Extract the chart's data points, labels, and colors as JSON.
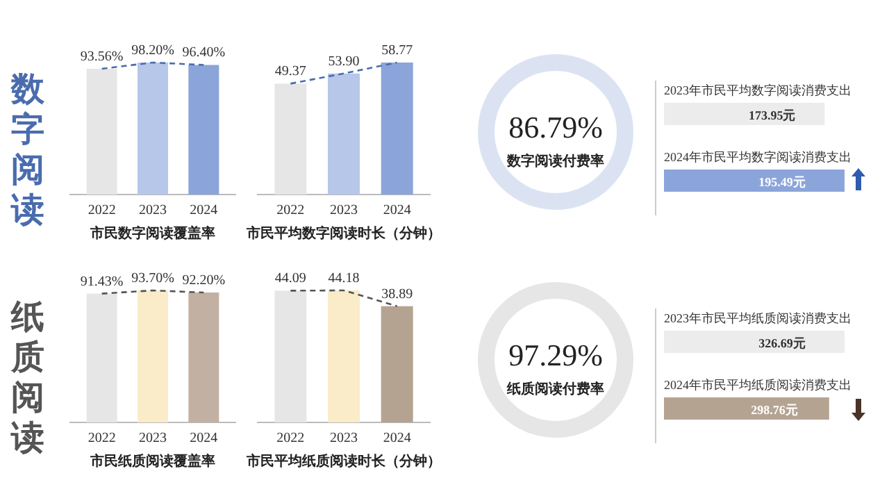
{
  "chart_data": [
    {
      "type": "bar",
      "title": "数字阅读",
      "xlabel": "市民数字阅读覆盖率",
      "categories": [
        "2022",
        "2023",
        "2024"
      ],
      "series": [
        {
          "type": "bar",
          "colors": [
            "#e6e6e6",
            "#b7c7e9",
            "#8ba5da"
          ],
          "values": [
            93.56,
            98.2,
            96.4
          ],
          "value_labels": [
            "93.56%",
            "98.20%",
            "96.40%"
          ]
        },
        {
          "type": "line",
          "color": "#4a6cae",
          "line_style": "dashed",
          "marker": "none",
          "values": [
            93.56,
            98.2,
            96.4
          ]
        }
      ]
    },
    {
      "type": "bar",
      "xlabel": "市民平均数字阅读时长（分钟）",
      "categories": [
        "2022",
        "2023",
        "2024"
      ],
      "series": [
        {
          "type": "bar",
          "colors": [
            "#e6e6e6",
            "#b7c7e9",
            "#8ba5da"
          ],
          "values": [
            49.37,
            53.9,
            58.77
          ],
          "value_labels": [
            "49.37",
            "53.90",
            "58.77"
          ]
        },
        {
          "type": "line",
          "color": "#4a6cae",
          "line_style": "dashed",
          "marker": "none",
          "values": [
            49.37,
            53.9,
            58.77
          ]
        }
      ]
    },
    {
      "type": "other",
      "color": "#dbe3f3",
      "annotations": [
        "86.79%",
        "数字阅读付费率"
      ]
    },
    {
      "type": "bar",
      "orientation": "horizontal",
      "categories": [
        "2023年市民平均数字阅读消费支出",
        "2024年市民平均数字阅读消费支出"
      ],
      "values": [
        173.95,
        195.49
      ],
      "colors": [
        "#ececec",
        "#8ba5da"
      ],
      "value_labels": [
        "173.95元",
        "195.49元"
      ]
    },
    {
      "type": "bar",
      "title": "纸质阅读",
      "xlabel": "市民纸质阅读覆盖率",
      "categories": [
        "2022",
        "2023",
        "2024"
      ],
      "series": [
        {
          "type": "bar",
          "colors": [
            "#e6e6e6",
            "#faecc9",
            "#c2b1a2"
          ],
          "values": [
            91.43,
            93.7,
            92.2
          ],
          "value_labels": [
            "91.43%",
            "93.70%",
            "92.20%"
          ]
        },
        {
          "type": "line",
          "color": "#555555",
          "line_style": "dashed",
          "marker": "none",
          "values": [
            91.43,
            93.7,
            92.2
          ]
        }
      ]
    },
    {
      "type": "bar",
      "xlabel": "市民平均纸质阅读时长（分钟）",
      "categories": [
        "2022",
        "2023",
        "2024"
      ],
      "series": [
        {
          "type": "bar",
          "colors": [
            "#e6e6e6",
            "#faecc9",
            "#b5a392"
          ],
          "values": [
            44.09,
            44.18,
            38.89
          ],
          "value_labels": [
            "44.09",
            "44.18",
            "38.89"
          ]
        },
        {
          "type": "line",
          "color": "#555555",
          "line_style": "dashed",
          "marker": "none",
          "values": [
            44.09,
            44.18,
            38.89
          ]
        }
      ]
    },
    {
      "type": "other",
      "color": "#e6e6e6",
      "annotations": [
        "97.29%",
        "纸质阅读付费率"
      ]
    },
    {
      "type": "bar",
      "orientation": "horizontal",
      "categories": [
        "2023年市民平均纸质阅读消费支出",
        "2024年市民平均纸质阅读消费支出"
      ],
      "values": [
        326.69,
        298.76
      ],
      "colors": [
        "#ececec",
        "#b5a392"
      ],
      "value_labels": [
        "326.69元",
        "298.76元"
      ]
    }
  ]
}
